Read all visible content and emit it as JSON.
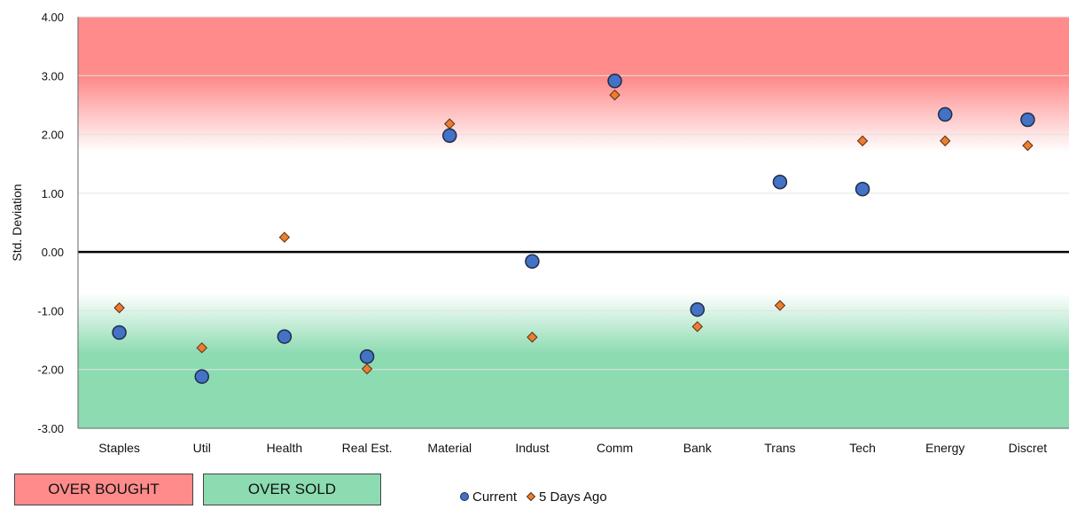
{
  "chart_data": {
    "type": "scatter",
    "title": "",
    "xlabel": "",
    "ylabel": "Std. Deviation",
    "ylim": [
      -3,
      4
    ],
    "y_ticks": [
      "4.00",
      "3.00",
      "2.00",
      "1.00",
      "0.00",
      "-1.00",
      "-2.00",
      "-3.00"
    ],
    "y_tick_values": [
      4,
      3,
      2,
      1,
      0,
      -1,
      -2,
      -3
    ],
    "categories": [
      "Staples",
      "Util",
      "Health",
      "Real Est.",
      "Material",
      "Indust",
      "Comm",
      "Bank",
      "Trans",
      "Tech",
      "Energy",
      "Discret"
    ],
    "series": [
      {
        "name": "Current",
        "marker": "circle",
        "color": "#4472C4",
        "values": [
          -1.37,
          -2.12,
          -1.44,
          -1.78,
          1.98,
          -0.16,
          2.91,
          -0.98,
          1.19,
          1.07,
          2.34,
          2.25
        ]
      },
      {
        "name": "5 Days Ago",
        "marker": "diamond",
        "color": "#ED7D31",
        "values": [
          -0.95,
          -1.63,
          0.25,
          -1.99,
          2.18,
          -1.45,
          2.67,
          -1.27,
          -0.91,
          1.89,
          1.89,
          1.81
        ]
      }
    ],
    "zones": {
      "overbought": {
        "from": 1.7,
        "to": 4,
        "color": "#FF8B8B"
      },
      "oversold": {
        "from": -3,
        "to": -0.7,
        "color": "#8CDBB1"
      }
    },
    "grid": true,
    "legend_position": "bottom"
  },
  "legend_boxes": {
    "overbought": {
      "label": "OVER BOUGHT",
      "color": "#FF8B8B"
    },
    "oversold": {
      "label": "OVER SOLD",
      "color": "#8CDBB1"
    }
  },
  "legend": {
    "current_label": "Current",
    "previous_label": "5 Days Ago"
  }
}
